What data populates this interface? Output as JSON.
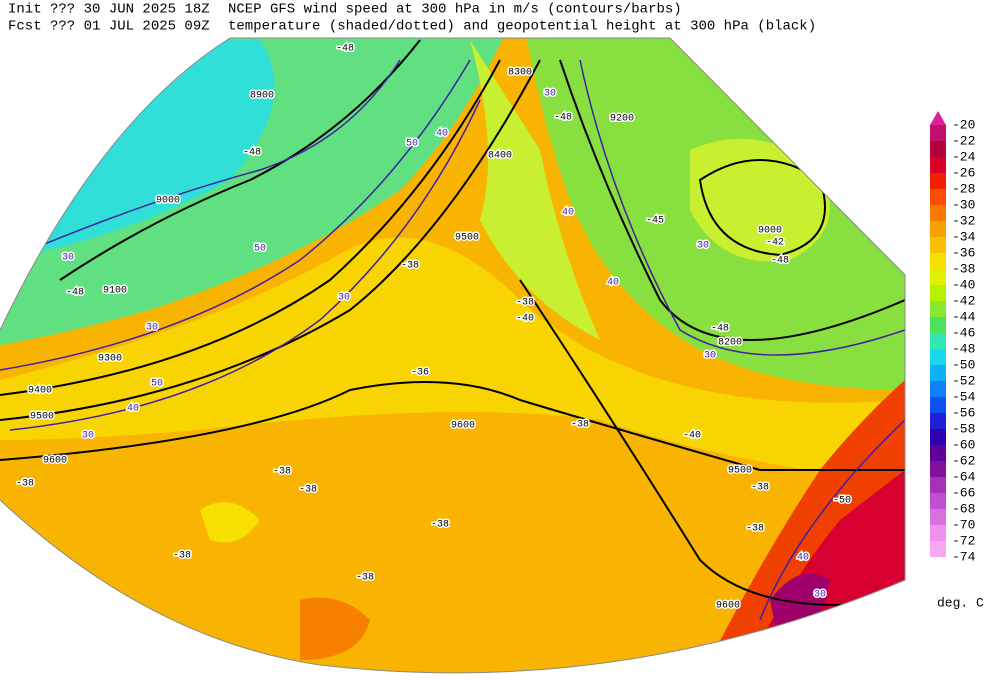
{
  "header": {
    "init": "Init  ??? 30 JUN 2025 18Z",
    "fcst": "Fcst ??? 01 JUL 2025 09Z",
    "line1": "NCEP GFS wind speed at 300 hPa in m/s (contours/barbs)",
    "line2": "temperature (shaded/dotted) and geopotential height at 300 hPa (black)"
  },
  "legend": {
    "levels": [
      -20,
      -22,
      -24,
      -26,
      -28,
      -30,
      -32,
      -34,
      -36,
      -38,
      -40,
      -42,
      -44,
      -46,
      -48,
      -50,
      -52,
      -54,
      -56,
      -58,
      -60,
      -62,
      -64,
      -66,
      -68,
      -70,
      -72,
      -74
    ],
    "colors": [
      "#e0209a",
      "#c0106e",
      "#b0003c",
      "#d80028",
      "#f02000",
      "#f85000",
      "#f87800",
      "#f8a000",
      "#f8c000",
      "#f8e000",
      "#e0f000",
      "#b8f000",
      "#88e830",
      "#50e060",
      "#30e8b0",
      "#18d8f0",
      "#10b0f8",
      "#1080f8",
      "#1050f0",
      "#2020d8",
      "#3000b0",
      "#600098",
      "#8010a0",
      "#a830b8",
      "#c050d0",
      "#d870e0",
      "#f090f0",
      "#f8a8f0"
    ],
    "unit": "deg. C"
  },
  "map_labels": [
    "-48",
    "8900",
    "-48",
    "9000",
    "30",
    "9100",
    "-48",
    "30",
    "9300",
    "9400",
    "9500",
    "50",
    "40",
    "30",
    "9600",
    "-38",
    "50",
    "30",
    "-38",
    "9500",
    "8400",
    "8300",
    "30",
    "40",
    "50",
    "9200",
    "-48",
    "40",
    "-45",
    "30",
    "9000",
    "-42",
    "-48",
    "40",
    "-48",
    "8200",
    "30",
    "-40",
    "-38",
    "-36",
    "9600",
    "-38",
    "-40",
    "9500",
    "-38",
    "-38",
    "-38",
    "-38",
    "-38",
    "-38",
    "-38",
    "40",
    "9600",
    "30",
    "-50"
  ]
}
